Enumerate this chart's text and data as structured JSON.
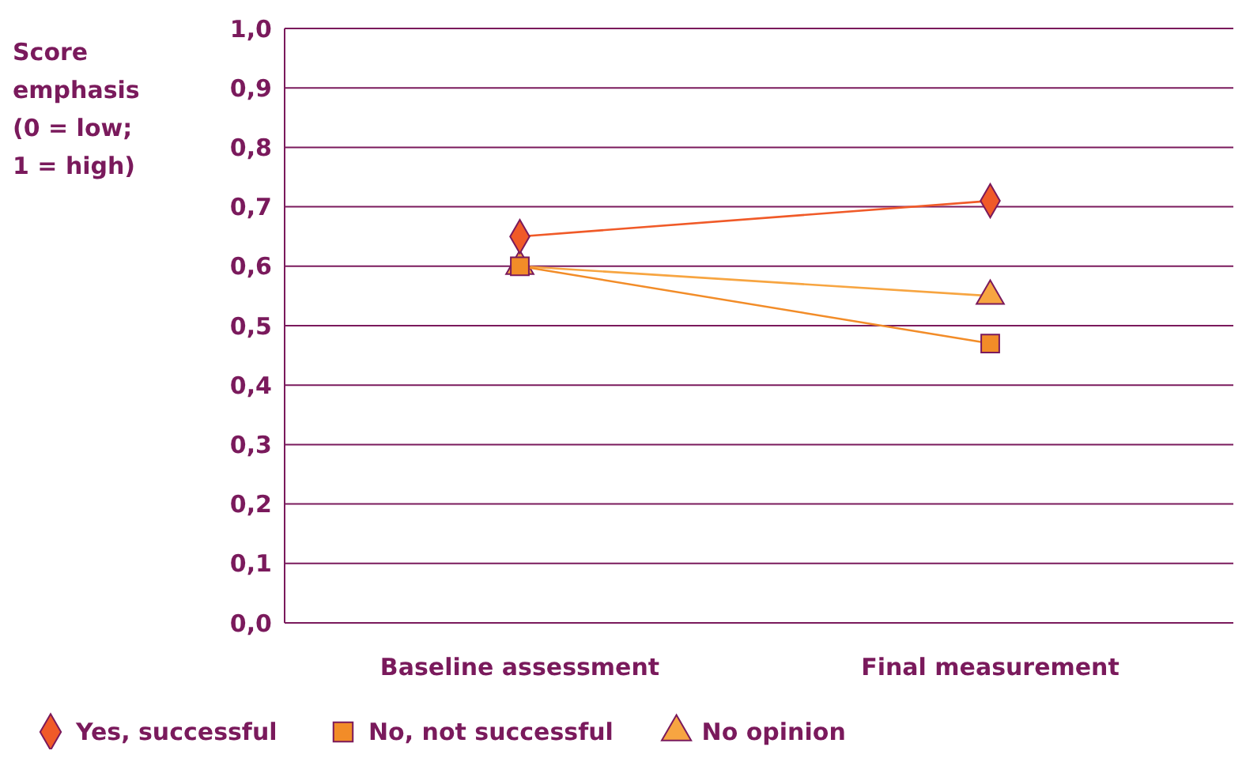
{
  "chart_data": {
    "type": "line",
    "ylabel": "Score emphasis (0 = low; 1 = high)",
    "categories": [
      "Baseline assessment",
      "Final measurement"
    ],
    "series": [
      {
        "name": "Yes, successful",
        "color": "#f05a28",
        "values": [
          0.65,
          0.71
        ],
        "marker": "diamond"
      },
      {
        "name": "No, not successful",
        "color": "#f28c28",
        "values": [
          0.6,
          0.47
        ],
        "marker": "square"
      },
      {
        "name": "No opinion",
        "color": "#f7a541",
        "values": [
          0.6,
          0.55
        ],
        "marker": "triangle"
      }
    ],
    "ylim": [
      0,
      1
    ],
    "yticks": [
      {
        "value": 0,
        "label": "0,0"
      },
      {
        "value": 0.1,
        "label": "0,1"
      },
      {
        "value": 0.2,
        "label": "0,2"
      },
      {
        "value": 0.3,
        "label": "0,3"
      },
      {
        "value": 0.4,
        "label": "0,4"
      },
      {
        "value": 0.5,
        "label": "0,5"
      },
      {
        "value": 0.6,
        "label": "0,6"
      },
      {
        "value": 0.7,
        "label": "0,7"
      },
      {
        "value": 0.8,
        "label": "0,8"
      },
      {
        "value": 0.9,
        "label": "0,9"
      },
      {
        "value": 1,
        "label": "1,0"
      }
    ],
    "grid": "y",
    "legend": "bottom"
  }
}
